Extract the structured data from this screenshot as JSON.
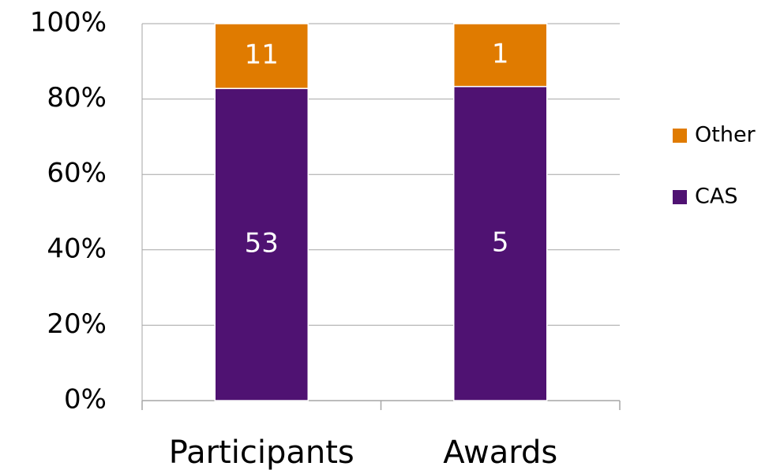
{
  "chart_data": {
    "type": "bar",
    "stacking": "percent",
    "categories": [
      "Participants",
      "Awards"
    ],
    "series": [
      {
        "name": "CAS",
        "color": "#4f1272",
        "values": [
          53,
          5
        ]
      },
      {
        "name": "Other",
        "color": "#e07b00",
        "values": [
          11,
          1
        ]
      }
    ],
    "ylim": [
      0,
      100
    ],
    "yticks": [
      {
        "value": 0,
        "label": "0%"
      },
      {
        "value": 20,
        "label": "20%"
      },
      {
        "value": 40,
        "label": "40%"
      },
      {
        "value": 60,
        "label": "60%"
      },
      {
        "value": 80,
        "label": "80%"
      },
      {
        "value": 100,
        "label": "100%"
      }
    ],
    "grid": true,
    "legend": "right"
  }
}
